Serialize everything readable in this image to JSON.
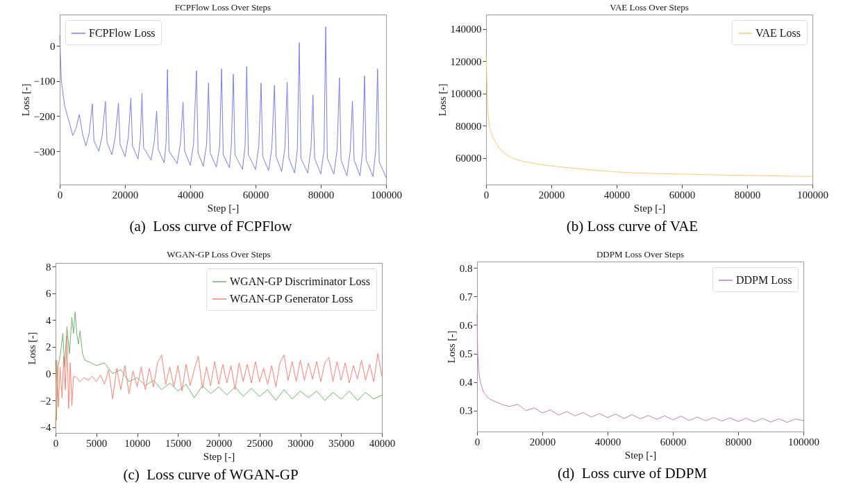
{
  "chart_data": [
    {
      "type": "line",
      "title": "FCPFlow Loss Over Steps",
      "xlabel": "Step [-]",
      "ylabel": "Loss [-]",
      "legend": "top left",
      "annotations": [
        "(a)  Loss curve of FCPFlow"
      ],
      "xlim": [
        0,
        100000
      ],
      "xticks": [
        0,
        20000,
        40000,
        60000,
        80000,
        100000
      ],
      "ylim": [
        -395,
        90
      ],
      "yticks": [
        {
          "value": -300,
          "label": "−300"
        },
        {
          "value": -200,
          "label": "−200"
        },
        {
          "value": -100,
          "label": "−100"
        },
        0
      ],
      "series": [
        {
          "name": "FCPFlow Loss",
          "color": "#7b7bf0",
          "x": [
            0,
            500,
            1500,
            3000,
            4000,
            5000,
            6000,
            7000,
            8000,
            9000,
            10000,
            10500,
            12000,
            13000,
            14000,
            14500,
            16000,
            17000,
            18000,
            18500,
            20000,
            21000,
            21800,
            22300,
            24000,
            24700,
            25200,
            25700,
            28000,
            29000,
            29700,
            30200,
            32000,
            32600,
            33000,
            33500,
            36000,
            37000,
            37800,
            38300,
            40000,
            41000,
            41900,
            42400,
            44000,
            45000,
            45600,
            46100,
            48000,
            49000,
            49600,
            50100,
            52000,
            52600,
            53200,
            53700,
            56000,
            56800,
            57300,
            57800,
            60000,
            61000,
            61700,
            62200,
            64000,
            65000,
            65800,
            66300,
            68000,
            69000,
            69700,
            70200,
            72000,
            72800,
            73400,
            73900,
            76000,
            77000,
            77600,
            78100,
            80000,
            81000,
            81500,
            82000,
            84000,
            85000,
            85700,
            86200,
            88000,
            89000,
            89700,
            90200,
            92000,
            92800,
            93400,
            93900,
            96000,
            96800,
            97400,
            97900,
            100000
          ],
          "values": [
            30,
            -100,
            -170,
            -220,
            -255,
            -235,
            -195,
            -250,
            -285,
            -250,
            -165,
            -270,
            -300,
            -255,
            -158,
            -275,
            -310,
            -260,
            -163,
            -280,
            -315,
            -262,
            -148,
            -285,
            -322,
            -265,
            -135,
            -290,
            -325,
            -270,
            -185,
            -295,
            -333,
            -275,
            -67,
            -300,
            -335,
            -275,
            -160,
            -300,
            -340,
            -280,
            -70,
            -305,
            -343,
            -280,
            -105,
            -305,
            -345,
            -285,
            -65,
            -310,
            -347,
            -280,
            -80,
            -310,
            -352,
            -285,
            -58,
            -310,
            -352,
            -285,
            -105,
            -315,
            -355,
            -290,
            -112,
            -315,
            -358,
            -290,
            -103,
            -320,
            -362,
            -295,
            10,
            -320,
            -362,
            -290,
            -140,
            -320,
            -365,
            -295,
            55,
            -320,
            -365,
            -295,
            -90,
            -325,
            -370,
            -300,
            -157,
            -325,
            -370,
            -300,
            -85,
            -325,
            -372,
            -300,
            -65,
            -330,
            -375
          ]
        }
      ]
    },
    {
      "type": "line",
      "title": "VAE Loss Over Steps",
      "xlabel": "Step [-]",
      "ylabel": "Loss [-]",
      "legend": "top right",
      "annotations": [
        "(b) Loss curve of VAE"
      ],
      "xlim": [
        0,
        100000
      ],
      "xticks": [
        0,
        20000,
        40000,
        60000,
        80000,
        100000
      ],
      "ylim": [
        43500,
        149000
      ],
      "yticks": [
        60000,
        80000,
        100000,
        120000,
        140000
      ],
      "series": [
        {
          "name": "VAE Loss",
          "color": "#ffc870",
          "x": [
            0,
            200,
            500,
            1000,
            2000,
            4000,
            6000,
            8000,
            10000,
            15000,
            20000,
            30000,
            40000,
            50000,
            60000,
            70000,
            80000,
            90000,
            100000
          ],
          "values": [
            124000,
            110000,
            90000,
            80000,
            73000,
            66000,
            62500,
            60000,
            58500,
            56500,
            55000,
            53000,
            51300,
            50400,
            50000,
            49500,
            49200,
            48800,
            48500
          ]
        }
      ]
    },
    {
      "type": "line",
      "title": "WGAN-GP Loss Over Steps",
      "xlabel": "Step [-]",
      "ylabel": "Loss [-]",
      "legend": "top right",
      "annotations": [
        "(c)  Loss curve of WGAN-GP"
      ],
      "xlim": [
        0,
        40000
      ],
      "xticks": [
        0,
        5000,
        10000,
        15000,
        20000,
        25000,
        30000,
        35000,
        40000
      ],
      "ylim": [
        -4.43,
        8.26
      ],
      "yticks": [
        {
          "value": -4,
          "label": "−4"
        },
        {
          "value": -2,
          "label": "−2"
        },
        0,
        2,
        4,
        6,
        8
      ],
      "series": [
        {
          "name": "WGAN-GP Discriminator Loss",
          "color": "#6db36d",
          "x": [
            0,
            100,
            300,
            600,
            900,
            1100,
            1400,
            1700,
            2000,
            2200,
            2400,
            2600,
            2800,
            3000,
            3300,
            3600,
            4000,
            5000,
            6000,
            7000,
            8000,
            9000,
            10000,
            11000,
            12000,
            13000,
            14000,
            15000,
            16000,
            17000,
            18000,
            19000,
            20000,
            21000,
            22000,
            23000,
            24000,
            25000,
            26000,
            27000,
            28000,
            29000,
            30000,
            31000,
            32000,
            33000,
            34000,
            35000,
            36000,
            37000,
            38000,
            39000,
            40000
          ],
          "values": [
            1.0,
            -3.5,
            0.5,
            1.5,
            3.0,
            0.5,
            3.5,
            1.5,
            4.2,
            3.0,
            4.6,
            3.0,
            2.2,
            3.2,
            1.5,
            1.0,
            0.9,
            0.6,
            0.8,
            0.0,
            0.3,
            -0.6,
            -0.3,
            -0.9,
            -0.5,
            -1.2,
            -0.7,
            -1.3,
            -0.8,
            -1.8,
            -0.9,
            -1.5,
            -1.0,
            -1.6,
            -1.0,
            -1.7,
            -1.1,
            -1.7,
            -1.2,
            -2.0,
            -1.2,
            -1.9,
            -1.3,
            -1.8,
            -1.3,
            -2.0,
            -1.4,
            -1.9,
            -1.3,
            -2.0,
            -1.4,
            -1.9,
            -1.6
          ]
        },
        {
          "name": "WGAN-GP Generator Loss",
          "color": "#ff7f70",
          "x": [
            0,
            150,
            350,
            550,
            800,
            1000,
            1200,
            1400,
            1600,
            1800,
            2000,
            2200,
            2600,
            3000,
            3500,
            4000,
            4500,
            5000,
            5500,
            6000,
            6500,
            7000,
            7500,
            8000,
            8500,
            9000,
            9500,
            10000,
            10500,
            11000,
            11500,
            12000,
            12500,
            13000,
            13500,
            14000,
            14500,
            15000,
            15500,
            16000,
            16500,
            17000,
            17500,
            18000,
            18500,
            19000,
            19500,
            20000,
            20500,
            21000,
            21500,
            22000,
            22500,
            23000,
            23500,
            24000,
            24500,
            25000,
            25500,
            26000,
            26500,
            27000,
            27500,
            28000,
            28500,
            29000,
            29500,
            30000,
            30500,
            31000,
            31500,
            32000,
            32500,
            33000,
            33500,
            34000,
            34500,
            35000,
            35500,
            36000,
            36500,
            37000,
            37500,
            38000,
            38500,
            39000,
            39500,
            40000
          ],
          "values": [
            -4.0,
            1.0,
            -2.5,
            0.5,
            -1.8,
            1.3,
            -1.2,
            2.8,
            -2.6,
            0.8,
            -2.4,
            -0.2,
            -0.3,
            -0.6,
            -0.3,
            -0.5,
            -0.2,
            -0.6,
            -0.1,
            -0.8,
            0.3,
            -1.9,
            0.4,
            -1.2,
            0.6,
            -1.5,
            0.2,
            -1.0,
            0.5,
            -1.2,
            0.4,
            -1.0,
            0.8,
            1.4,
            -0.8,
            0.5,
            -1.0,
            0.6,
            -1.3,
            0.7,
            -0.9,
            0.3,
            1.3,
            -1.1,
            0.5,
            -0.9,
            0.9,
            -0.8,
            0.7,
            -0.7,
            0.6,
            -1.2,
            0.8,
            -0.6,
            0.7,
            -0.7,
            0.9,
            -0.6,
            0.4,
            -0.8,
            0.6,
            -1.0,
            0.8,
            1.4,
            -0.5,
            0.9,
            -0.6,
            1.0,
            -0.5,
            0.8,
            -0.4,
            0.9,
            -0.6,
            0.8,
            1.2,
            -0.6,
            0.9,
            -0.5,
            0.8,
            -0.7,
            0.6,
            -0.4,
            1.0,
            -0.5,
            0.7,
            -0.6,
            1.5,
            -0.2
          ]
        }
      ]
    },
    {
      "type": "line",
      "title": "DDPM Loss Over Steps",
      "xlabel": "Step [-]",
      "ylabel": "Loss [-]",
      "legend": "top right",
      "annotations": [
        "(d)  Loss curve of DDPM"
      ],
      "xlim": [
        0,
        100000
      ],
      "xticks": [
        0,
        20000,
        40000,
        60000,
        80000,
        100000
      ],
      "ylim": [
        0.227,
        0.822
      ],
      "yticks": [
        0.3,
        0.4,
        0.5,
        0.6,
        0.7,
        0.8
      ],
      "series": [
        {
          "name": "DDPM Loss",
          "color": "#c77cbe",
          "x": [
            0,
            200,
            500,
            1000,
            2000,
            3000,
            4000,
            6000,
            8000,
            10000,
            12500,
            15000,
            17500,
            20000,
            22500,
            25000,
            27500,
            30000,
            32500,
            35000,
            37500,
            40000,
            42500,
            45000,
            47500,
            50000,
            52500,
            55000,
            57500,
            60000,
            62500,
            65000,
            67500,
            70000,
            72500,
            75000,
            77500,
            80000,
            82500,
            85000,
            87500,
            90000,
            92500,
            95000,
            97500,
            100000
          ],
          "values": [
            0.64,
            0.5,
            0.44,
            0.4,
            0.365,
            0.35,
            0.34,
            0.33,
            0.32,
            0.315,
            0.322,
            0.3,
            0.31,
            0.292,
            0.303,
            0.285,
            0.297,
            0.282,
            0.293,
            0.278,
            0.29,
            0.276,
            0.288,
            0.273,
            0.286,
            0.272,
            0.283,
            0.27,
            0.282,
            0.268,
            0.281,
            0.266,
            0.278,
            0.265,
            0.276,
            0.264,
            0.275,
            0.262,
            0.274,
            0.261,
            0.273,
            0.26,
            0.272,
            0.259,
            0.271,
            0.265
          ]
        }
      ]
    }
  ]
}
